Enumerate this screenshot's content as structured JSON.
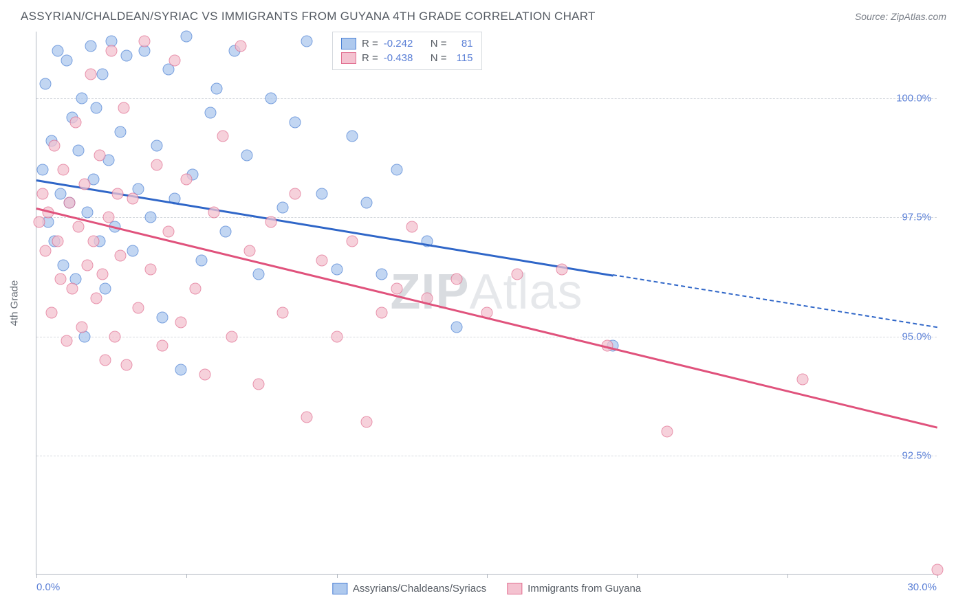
{
  "header": {
    "title": "ASSYRIAN/CHALDEAN/SYRIAC VS IMMIGRANTS FROM GUYANA 4TH GRADE CORRELATION CHART",
    "source_prefix": "Source: ",
    "source_name": "ZipAtlas.com"
  },
  "chart": {
    "type": "scatter",
    "yaxis_title": "4th Grade",
    "watermark": "ZIPAtlas",
    "background_color": "#ffffff",
    "grid_color": "#d5d9de",
    "axis_color": "#b0b6bf",
    "tick_label_color": "#5a7fd6",
    "xlim": [
      0.0,
      30.0
    ],
    "ylim": [
      90.0,
      101.4
    ],
    "yticks": [
      {
        "v": 92.5,
        "label": "92.5%"
      },
      {
        "v": 95.0,
        "label": "95.0%"
      },
      {
        "v": 97.5,
        "label": "97.5%"
      },
      {
        "v": 100.0,
        "label": "100.0%"
      }
    ],
    "xticks_v": [
      0,
      5,
      10,
      15,
      20,
      25,
      30
    ],
    "xrange_labels": {
      "min": "0.0%",
      "max": "30.0%"
    },
    "series": [
      {
        "id": "s1",
        "name": "Assyrians/Chaldeans/Syriacs",
        "fill": "#aec9ee",
        "stroke": "#4a7fd4",
        "line_color": "#2f66c8",
        "R": "-0.242",
        "N": "81",
        "trend": {
          "x1": 0.0,
          "y1": 98.3,
          "x2": 19.2,
          "y2": 96.3
        },
        "trend_ext": {
          "x1": 19.2,
          "y1": 96.3,
          "x2": 30.0,
          "y2": 95.2
        },
        "points": [
          [
            0.2,
            98.5
          ],
          [
            0.3,
            100.3
          ],
          [
            0.4,
            97.4
          ],
          [
            0.5,
            99.1
          ],
          [
            0.6,
            97.0
          ],
          [
            0.7,
            101.0
          ],
          [
            0.8,
            98.0
          ],
          [
            0.9,
            96.5
          ],
          [
            1.0,
            100.8
          ],
          [
            1.1,
            97.8
          ],
          [
            1.2,
            99.6
          ],
          [
            1.3,
            96.2
          ],
          [
            1.4,
            98.9
          ],
          [
            1.5,
            100.0
          ],
          [
            1.6,
            95.0
          ],
          [
            1.7,
            97.6
          ],
          [
            1.8,
            101.1
          ],
          [
            1.9,
            98.3
          ],
          [
            2.0,
            99.8
          ],
          [
            2.1,
            97.0
          ],
          [
            2.2,
            100.5
          ],
          [
            2.3,
            96.0
          ],
          [
            2.4,
            98.7
          ],
          [
            2.5,
            101.2
          ],
          [
            2.6,
            97.3
          ],
          [
            2.8,
            99.3
          ],
          [
            3.0,
            100.9
          ],
          [
            3.2,
            96.8
          ],
          [
            3.4,
            98.1
          ],
          [
            3.6,
            101.0
          ],
          [
            3.8,
            97.5
          ],
          [
            4.0,
            99.0
          ],
          [
            4.2,
            95.4
          ],
          [
            4.4,
            100.6
          ],
          [
            4.6,
            97.9
          ],
          [
            4.8,
            94.3
          ],
          [
            5.0,
            101.3
          ],
          [
            5.2,
            98.4
          ],
          [
            5.5,
            96.6
          ],
          [
            5.8,
            99.7
          ],
          [
            6.0,
            100.2
          ],
          [
            6.3,
            97.2
          ],
          [
            6.6,
            101.0
          ],
          [
            7.0,
            98.8
          ],
          [
            7.4,
            96.3
          ],
          [
            7.8,
            100.0
          ],
          [
            8.2,
            97.7
          ],
          [
            8.6,
            99.5
          ],
          [
            9.0,
            101.2
          ],
          [
            9.5,
            98.0
          ],
          [
            10.0,
            96.4
          ],
          [
            10.5,
            99.2
          ],
          [
            11.0,
            97.8
          ],
          [
            11.5,
            96.3
          ],
          [
            12.0,
            98.5
          ],
          [
            13.0,
            97.0
          ],
          [
            14.0,
            95.2
          ],
          [
            19.2,
            94.8
          ]
        ]
      },
      {
        "id": "s2",
        "name": "Immigrants from Guyana",
        "fill": "#f4c2d0",
        "stroke": "#e16d8f",
        "line_color": "#e0527c",
        "R": "-0.438",
        "N": "115",
        "trend": {
          "x1": 0.0,
          "y1": 97.7,
          "x2": 30.0,
          "y2": 93.1
        },
        "points": [
          [
            0.1,
            97.4
          ],
          [
            0.2,
            98.0
          ],
          [
            0.3,
            96.8
          ],
          [
            0.4,
            97.6
          ],
          [
            0.5,
            95.5
          ],
          [
            0.6,
            99.0
          ],
          [
            0.7,
            97.0
          ],
          [
            0.8,
            96.2
          ],
          [
            0.9,
            98.5
          ],
          [
            1.0,
            94.9
          ],
          [
            1.1,
            97.8
          ],
          [
            1.2,
            96.0
          ],
          [
            1.3,
            99.5
          ],
          [
            1.4,
            97.3
          ],
          [
            1.5,
            95.2
          ],
          [
            1.6,
            98.2
          ],
          [
            1.7,
            96.5
          ],
          [
            1.8,
            100.5
          ],
          [
            1.9,
            97.0
          ],
          [
            2.0,
            95.8
          ],
          [
            2.1,
            98.8
          ],
          [
            2.2,
            96.3
          ],
          [
            2.3,
            94.5
          ],
          [
            2.4,
            97.5
          ],
          [
            2.5,
            101.0
          ],
          [
            2.6,
            95.0
          ],
          [
            2.7,
            98.0
          ],
          [
            2.8,
            96.7
          ],
          [
            2.9,
            99.8
          ],
          [
            3.0,
            94.4
          ],
          [
            3.2,
            97.9
          ],
          [
            3.4,
            95.6
          ],
          [
            3.6,
            101.2
          ],
          [
            3.8,
            96.4
          ],
          [
            4.0,
            98.6
          ],
          [
            4.2,
            94.8
          ],
          [
            4.4,
            97.2
          ],
          [
            4.6,
            100.8
          ],
          [
            4.8,
            95.3
          ],
          [
            5.0,
            98.3
          ],
          [
            5.3,
            96.0
          ],
          [
            5.6,
            94.2
          ],
          [
            5.9,
            97.6
          ],
          [
            6.2,
            99.2
          ],
          [
            6.5,
            95.0
          ],
          [
            6.8,
            101.1
          ],
          [
            7.1,
            96.8
          ],
          [
            7.4,
            94.0
          ],
          [
            7.8,
            97.4
          ],
          [
            8.2,
            95.5
          ],
          [
            8.6,
            98.0
          ],
          [
            9.0,
            93.3
          ],
          [
            9.5,
            96.6
          ],
          [
            10.0,
            95.0
          ],
          [
            10.5,
            97.0
          ],
          [
            11.0,
            93.2
          ],
          [
            11.5,
            95.5
          ],
          [
            12.0,
            96.0
          ],
          [
            12.5,
            97.3
          ],
          [
            13.0,
            95.8
          ],
          [
            14.0,
            96.2
          ],
          [
            15.0,
            95.5
          ],
          [
            16.0,
            96.3
          ],
          [
            17.5,
            96.4
          ],
          [
            19.0,
            94.8
          ],
          [
            21.0,
            93.0
          ],
          [
            25.5,
            94.1
          ],
          [
            30.0,
            90.1
          ]
        ]
      }
    ]
  }
}
